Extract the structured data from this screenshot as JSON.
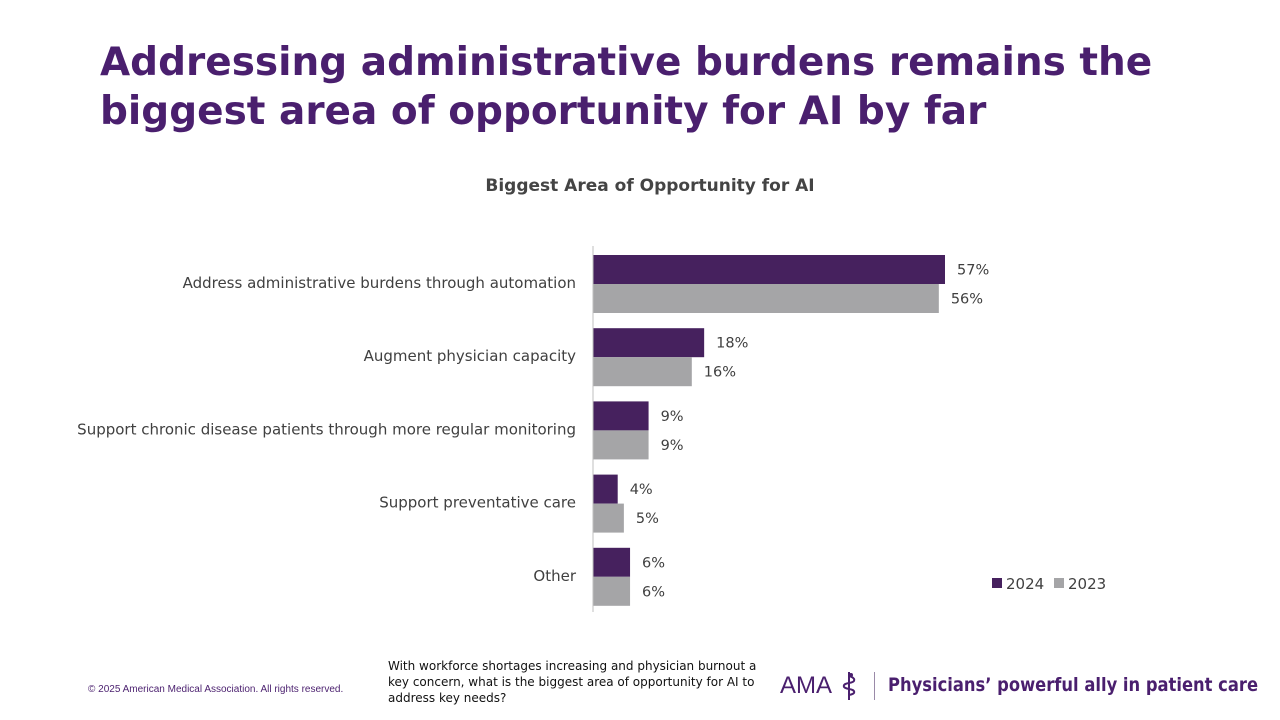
{
  "slide": {
    "title_line1": "Addressing administrative burdens remains the",
    "title_line2": "biggest area of opportunity for AI by far",
    "question": "With workforce shortages increasing and physician burnout a key concern, what is the biggest area of opportunity for AI to address key needs?",
    "copyright": "© 2025 American Medical Association. All rights reserved.",
    "logo_text": "AMA",
    "tagline": "Physicians’ powerful ally in patient care"
  },
  "colors": {
    "title": "#4a1f6e",
    "series_2024": "#46215e",
    "series_2023": "#a5a5a7",
    "axis": "#bfbfbf",
    "text": "#404040"
  },
  "chart_data": {
    "type": "bar",
    "orientation": "horizontal",
    "title": "Biggest Area of Opportunity for AI",
    "categories": [
      "Address administrative burdens through automation",
      "Augment physician capacity",
      "Support chronic disease patients through more regular monitoring",
      "Support preventative care",
      "Other"
    ],
    "series": [
      {
        "name": "2024",
        "values": [
          57,
          18,
          9,
          4,
          6
        ]
      },
      {
        "name": "2023",
        "values": [
          56,
          16,
          9,
          5,
          6
        ]
      }
    ],
    "value_suffix": "%",
    "xlim": [
      0,
      100
    ],
    "xlabel": "",
    "ylabel": "",
    "grid": false,
    "legend_position": "bottom-right"
  }
}
